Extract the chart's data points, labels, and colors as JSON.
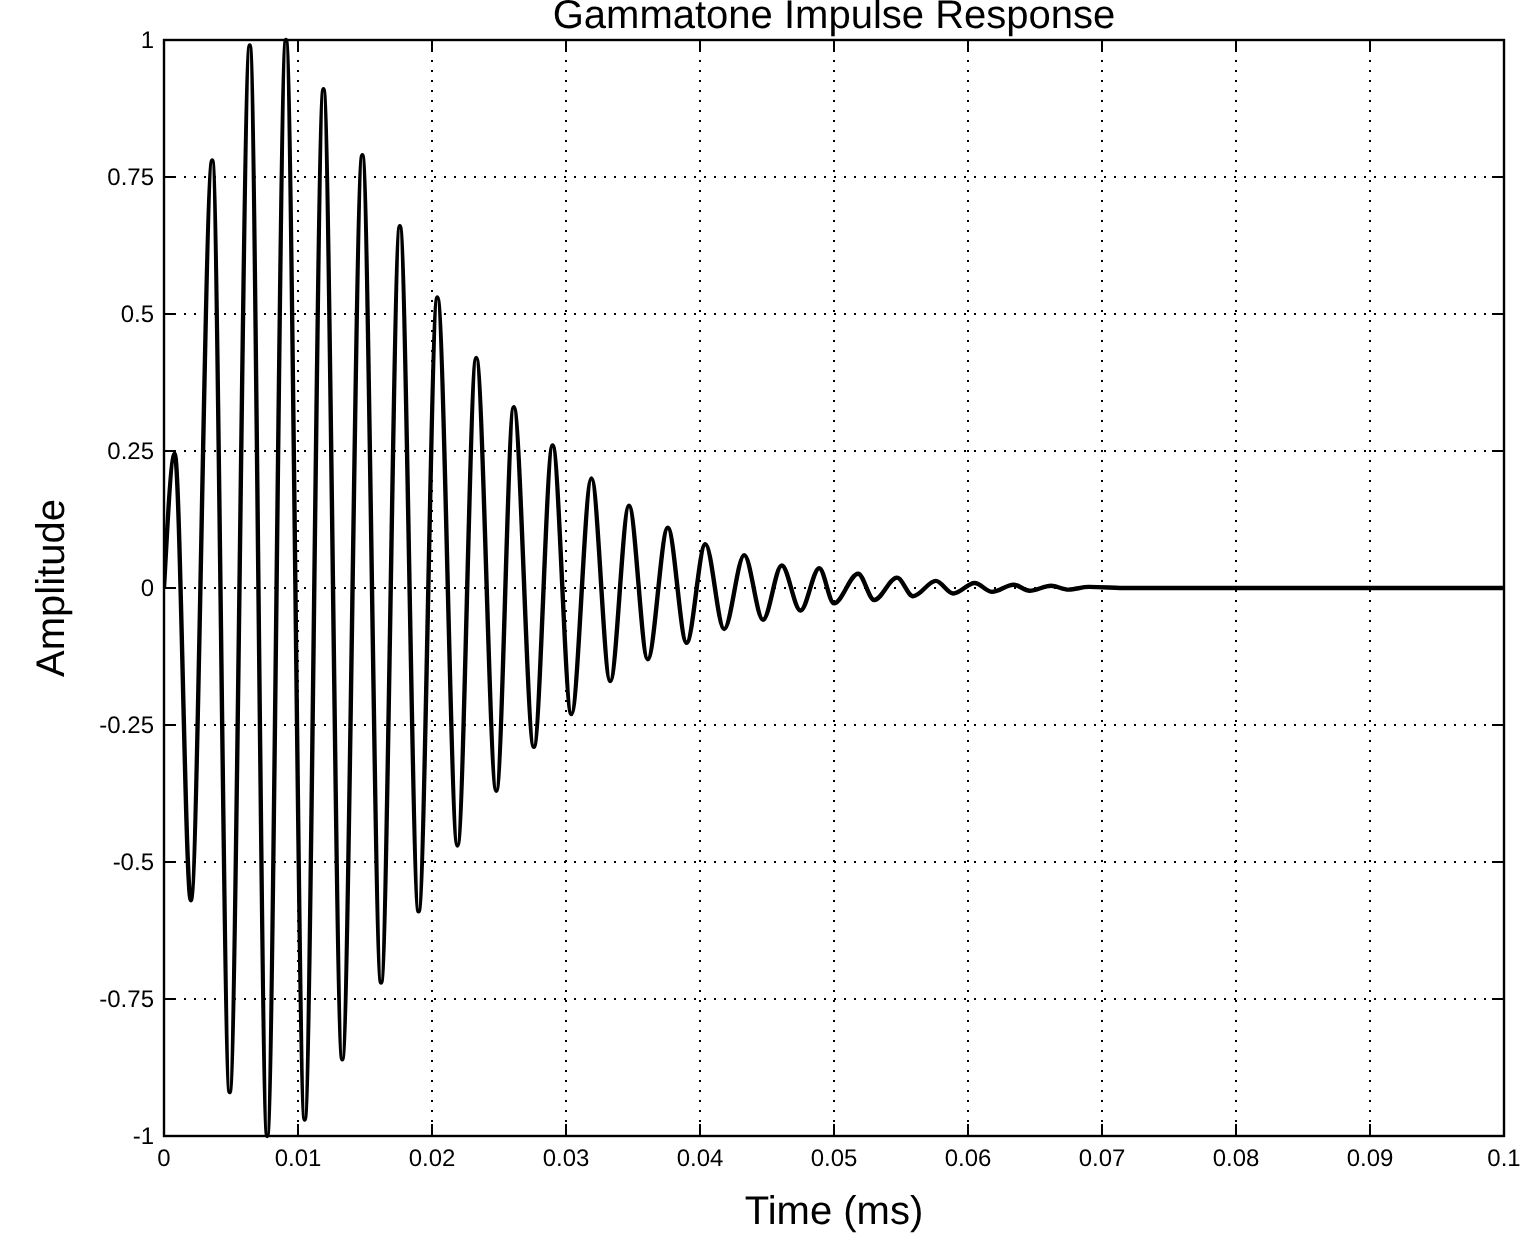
{
  "chart_data": {
    "type": "line",
    "title": "Gammatone Impulse Response",
    "xlabel": "Time (ms)",
    "ylabel": "Amplitude",
    "xlim": [
      0,
      0.1
    ],
    "xticks": [
      0,
      0.01,
      0.02,
      0.03,
      0.04,
      0.05,
      0.06,
      0.07,
      0.08,
      0.09,
      0.1
    ],
    "ylim": [
      -1,
      1
    ],
    "yticks": [
      -1,
      -0.75,
      -0.5,
      -0.25,
      0,
      0.25,
      0.5,
      0.75,
      1
    ],
    "grid": true,
    "marker": "none",
    "line_style": "solid",
    "series": [
      {
        "color": "#000000",
        "x": [
          0,
          0.0008,
          0.002,
          0.0036,
          0.0049,
          0.0064,
          0.0077,
          0.0091,
          0.0105,
          0.0119,
          0.0133,
          0.0148,
          0.0162,
          0.0176,
          0.019,
          0.0204,
          0.0219,
          0.0233,
          0.0248,
          0.0261,
          0.0276,
          0.029,
          0.0304,
          0.0319,
          0.0333,
          0.0347,
          0.0361,
          0.0376,
          0.039,
          0.0404,
          0.0418,
          0.0433,
          0.0447,
          0.0461,
          0.0475,
          0.0489,
          0.05,
          0.0518,
          0.053,
          0.0547,
          0.0559,
          0.0576,
          0.0589,
          0.0605,
          0.0618,
          0.0634,
          0.0646,
          0.0662,
          0.0675,
          0.069,
          0.072,
          0.08,
          0.1
        ],
        "values": [
          0,
          0.245,
          -0.57,
          0.78,
          -0.92,
          0.99,
          -1,
          1,
          -0.97,
          0.91,
          -0.86,
          0.79,
          -0.72,
          0.66,
          -0.59,
          0.53,
          -0.47,
          0.42,
          -0.37,
          0.33,
          -0.29,
          0.26,
          -0.23,
          0.2,
          -0.17,
          0.15,
          -0.13,
          0.11,
          -0.1,
          0.08,
          -0.075,
          0.06,
          -0.058,
          0.041,
          -0.041,
          0.036,
          -0.028,
          0.026,
          -0.022,
          0.019,
          -0.015,
          0.013,
          -0.01,
          0.009,
          -0.007,
          0.006,
          -0.005,
          0.004,
          -0.003,
          0.002,
          0,
          0,
          0
        ]
      }
    ]
  }
}
